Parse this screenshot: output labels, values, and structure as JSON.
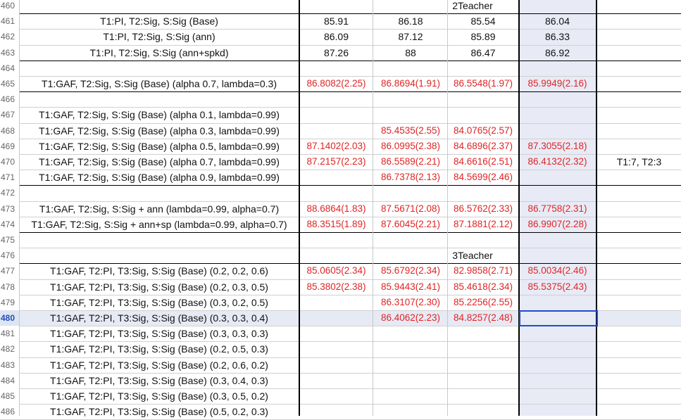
{
  "sheet": {
    "active_row": "480",
    "section_2teacher": "2Teacher",
    "section_3teacher": "3Teacher",
    "rows": [
      {
        "num": "460",
        "label": "",
        "c1": "",
        "c2": "",
        "c3": "",
        "c4": "",
        "c5": ""
      },
      {
        "num": "461",
        "label": "T1:PI, T2:Sig, S:Sig (Base)",
        "c1": "85.91",
        "c2": "86.18",
        "c3": "85.54",
        "c4": "86.04",
        "c5": ""
      },
      {
        "num": "462",
        "label": "T1:PI, T2:Sig, S:Sig (ann)",
        "c1": "86.09",
        "c2": "87.12",
        "c3": "85.89",
        "c4": "86.33",
        "c5": ""
      },
      {
        "num": "463",
        "label": "T1:PI, T2:Sig, S:Sig (ann+spkd)",
        "c1": "87.26",
        "c2": "88",
        "c3": "86.47",
        "c4": "86.92",
        "c5": ""
      },
      {
        "num": "464",
        "label": "",
        "c1": "",
        "c2": "",
        "c3": "",
        "c4": "",
        "c5": ""
      },
      {
        "num": "465",
        "label": "T1:GAF, T2:Sig, S:Sig (Base) (alpha 0.7, lambda=0.3)",
        "c1": "86.8082(2.25)",
        "c2": "86.8694(1.91)",
        "c3": "86.5548(1.97)",
        "c4": "85.9949(2.16)",
        "c5": ""
      },
      {
        "num": "466",
        "label": "",
        "c1": "",
        "c2": "",
        "c3": "",
        "c4": "",
        "c5": ""
      },
      {
        "num": "467",
        "label": "T1:GAF, T2:Sig, S:Sig (Base) (alpha 0.1, lambda=0.99)",
        "c1": "",
        "c2": "",
        "c3": "",
        "c4": "",
        "c5": ""
      },
      {
        "num": "468",
        "label": "T1:GAF, T2:Sig, S:Sig (Base) (alpha 0.3, lambda=0.99)",
        "c1": "",
        "c2": "85.4535(2.55)",
        "c3": "84.0765(2.57)",
        "c4": "",
        "c5": ""
      },
      {
        "num": "469",
        "label": "T1:GAF, T2:Sig, S:Sig (Base) (alpha 0.5, lambda=0.99)",
        "c1": "87.1402(2.03)",
        "c2": "86.0995(2.38)",
        "c3": "84.6896(2.37)",
        "c4": "87.3055(2.18)",
        "c5": ""
      },
      {
        "num": "470",
        "label": "T1:GAF, T2:Sig, S:Sig (Base) (alpha 0.7, lambda=0.99)",
        "c1": "87.2157(2.23)",
        "c2": "86.5589(2.21)",
        "c3": "84.6616(2.51)",
        "c4": "86.4132(2.32)",
        "c5": "T1:7, T2:3"
      },
      {
        "num": "471",
        "label": "T1:GAF, T2:Sig, S:Sig (Base) (alpha 0.9, lambda=0.99)",
        "c1": "",
        "c2": "86.7378(2.13)",
        "c3": "84.5699(2.46)",
        "c4": "",
        "c5": ""
      },
      {
        "num": "472",
        "label": "",
        "c1": "",
        "c2": "",
        "c3": "",
        "c4": "",
        "c5": ""
      },
      {
        "num": "473",
        "label": "T1:GAF, T2:Sig, S:Sig + ann (lambda=0.99, alpha=0.7)",
        "c1": "88.6864(1.83)",
        "c2": "87.5671(2.08)",
        "c3": "86.5762(2.33)",
        "c4": "86.7758(2.31)",
        "c5": ""
      },
      {
        "num": "474",
        "label": "T1:GAF, T2:Sig, S:Sig + ann+sp (lambda=0.99, alpha=0.7)",
        "c1": "88.3515(1.89)",
        "c2": "87.6045(2.21)",
        "c3": "87.1881(2.12)",
        "c4": "86.9907(2.28)",
        "c5": ""
      },
      {
        "num": "475",
        "label": "",
        "c1": "",
        "c2": "",
        "c3": "",
        "c4": "",
        "c5": ""
      },
      {
        "num": "476",
        "label": "",
        "c1": "",
        "c2": "",
        "c3": "",
        "c4": "",
        "c5": ""
      },
      {
        "num": "477",
        "label": "T1:GAF, T2:PI, T3:Sig, S:Sig (Base) (0.2, 0.2, 0.6)",
        "c1": "85.0605(2.34)",
        "c2": "85.6792(2.34)",
        "c3": "82.9858(2.71)",
        "c4": "85.0034(2.46)",
        "c5": ""
      },
      {
        "num": "478",
        "label": "T1:GAF, T2:PI, T3:Sig, S:Sig (Base) (0.2, 0.3, 0.5)",
        "c1": "85.3802(2.38)",
        "c2": "85.9443(2.41)",
        "c3": "85.4618(2.34)",
        "c4": "85.5375(2.43)",
        "c5": ""
      },
      {
        "num": "479",
        "label": "T1:GAF, T2:PI, T3:Sig, S:Sig (Base) (0.3, 0.2, 0.5)",
        "c1": "",
        "c2": "86.3107(2.30)",
        "c3": "85.2256(2.55)",
        "c4": "",
        "c5": ""
      },
      {
        "num": "480",
        "label": "T1:GAF, T2:PI, T3:Sig, S:Sig (Base) (0.3, 0.3, 0.4)",
        "c1": "",
        "c2": "86.4062(2.23)",
        "c3": "84.8257(2.48)",
        "c4": "",
        "c5": ""
      },
      {
        "num": "481",
        "label": "T1:GAF, T2:PI, T3:Sig, S:Sig (Base) (0.3, 0.3, 0.3)",
        "c1": "",
        "c2": "",
        "c3": "",
        "c4": "",
        "c5": ""
      },
      {
        "num": "482",
        "label": "T1:GAF, T2:PI, T3:Sig, S:Sig (Base) (0.2, 0.5, 0.3)",
        "c1": "",
        "c2": "",
        "c3": "",
        "c4": "",
        "c5": ""
      },
      {
        "num": "483",
        "label": "T1:GAF, T2:PI, T3:Sig, S:Sig (Base) (0.2, 0.6, 0.2)",
        "c1": "",
        "c2": "",
        "c3": "",
        "c4": "",
        "c5": ""
      },
      {
        "num": "484",
        "label": "T1:GAF, T2:PI, T3:Sig, S:Sig (Base) (0.3, 0.4, 0.3)",
        "c1": "",
        "c2": "",
        "c3": "",
        "c4": "",
        "c5": ""
      },
      {
        "num": "485",
        "label": "T1:GAF, T2:PI, T3:Sig, S:Sig (Base) (0.3, 0.5, 0.2)",
        "c1": "",
        "c2": "",
        "c3": "",
        "c4": "",
        "c5": ""
      },
      {
        "num": "486",
        "label": "T1:GAF, T2:PI, T3:Sig, S:Sig (Base) (0.5, 0.2, 0.3)",
        "c1": "",
        "c2": "",
        "c3": "",
        "c4": "",
        "c5": ""
      }
    ],
    "red_rows": [
      "465",
      "468",
      "469",
      "470",
      "471",
      "473",
      "474",
      "477",
      "478",
      "479",
      "480"
    ]
  }
}
